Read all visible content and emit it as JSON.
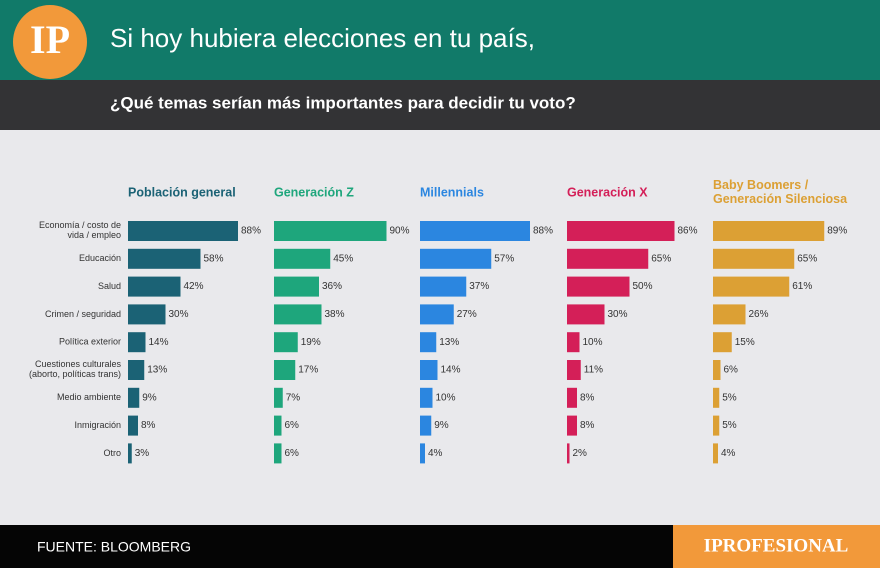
{
  "header": {
    "logo": "IP"
  },
  "chart_data": {
    "type": "bar",
    "title": "Si hoy hubiera elecciones en tu país,",
    "subtitle": "¿Qué temas serían más importantes para decidir tu voto?",
    "categories": [
      "Economía / costo de\nvida / empleo",
      "Educación",
      "Salud",
      "Crimen / seguridad",
      "Política exterior",
      "Cuestiones culturales\n(aborto, políticas trans)",
      "Medio ambiente",
      "Inmigración",
      "Otro"
    ],
    "series": [
      {
        "name": "Población general",
        "color": "#1b6275",
        "values": [
          88,
          58,
          42,
          30,
          14,
          13,
          9,
          8,
          3
        ],
        "value_labels": [
          "88%",
          "58%",
          "42%",
          "30%",
          "14%",
          "13%",
          "9%",
          "8%",
          "3%"
        ]
      },
      {
        "name": "Generación Z",
        "color": "#1ea67c",
        "values": [
          90,
          45,
          36,
          38,
          19,
          17,
          7,
          6,
          6
        ],
        "value_labels": [
          "90%",
          "45%",
          "36%",
          "38%",
          "19%",
          "17%",
          "7%",
          "6%",
          "6%"
        ]
      },
      {
        "name": "Millennials",
        "color": "#2b86e0",
        "values": [
          88,
          57,
          37,
          27,
          13,
          14,
          10,
          9,
          4
        ],
        "value_labels": [
          "88%",
          "57%",
          "37%",
          "27%",
          "13%",
          "14%",
          "10%",
          "9%",
          "4%"
        ]
      },
      {
        "name": "Generación X",
        "color": "#d41f58",
        "values": [
          86,
          65,
          50,
          30,
          10,
          11,
          8,
          8,
          2
        ],
        "value_labels": [
          "86%",
          "65%",
          "50%",
          "30%",
          "10%",
          "11%",
          "8%",
          "8%",
          "2%"
        ]
      },
      {
        "name": "Baby Boomers /\nGeneración Silenciosa",
        "color": "#dca034",
        "values": [
          89,
          65,
          61,
          26,
          15,
          6,
          5,
          5,
          4
        ],
        "value_labels": [
          "89%",
          "65%",
          "61%",
          "26%",
          "15%",
          "6%",
          "5%",
          "5%",
          "4%"
        ]
      }
    ]
  },
  "footer": {
    "source": "FUENTE: BLOOMBERG",
    "brand": "IPROFESIONAL"
  }
}
